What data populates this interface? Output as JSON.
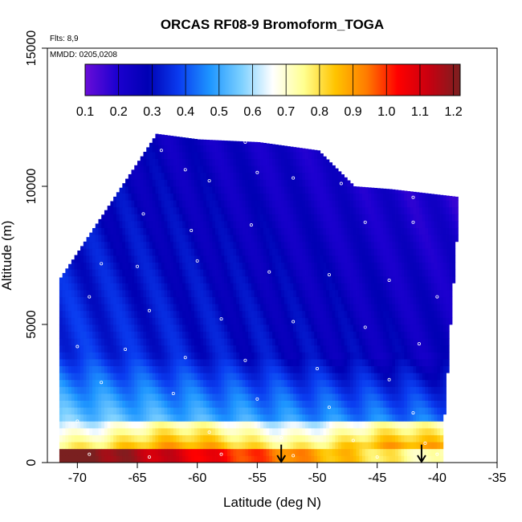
{
  "chart_data": {
    "type": "heatmap",
    "title": "ORCAS RF08-9 Bromoform_TOGA",
    "xlabel": "Latitude (deg N)",
    "ylabel": "Altitude (m)",
    "xlim": [
      -72.5,
      -35
    ],
    "ylim": [
      0,
      15000
    ],
    "x_ticks": [
      -70,
      -65,
      -60,
      -55,
      -50,
      -45,
      -40,
      -35
    ],
    "y_ticks": [
      0,
      5000,
      10000,
      15000
    ],
    "flights_note": "Flts: 8,9",
    "date_note": "MMDD: 0205,0208",
    "colorbar": {
      "ticks": [
        0.1,
        0.2,
        0.3,
        0.4,
        0.5,
        0.6,
        0.7,
        0.8,
        0.9,
        1.0,
        1.1,
        1.2
      ],
      "tick_labels": [
        "0.1",
        "0.2",
        "0.3",
        "0.4",
        "0.5",
        "0.6",
        "0.7",
        "0.8",
        "0.9",
        "1.0",
        "1.1",
        "1.2"
      ],
      "range": [
        0.1,
        1.22
      ],
      "colors": [
        "#6a0dd8",
        "#1d00d0",
        "#0000b4",
        "#0a3cf0",
        "#1e96ff",
        "#7cd0ff",
        "#ffffff",
        "#ffff90",
        "#ffc400",
        "#ff7c00",
        "#ff0000",
        "#c80010",
        "#7a2020"
      ]
    },
    "domain_top": [
      [
        -63.5,
        11900
      ],
      [
        -60,
        11700
      ],
      [
        -55,
        11600
      ],
      [
        -50,
        11300
      ],
      [
        -47,
        10000
      ],
      [
        -44,
        9900
      ],
      [
        -38,
        9600
      ]
    ],
    "x_left": -71.5,
    "x_right_bottom": -39.5,
    "arrows_lat": [
      -53,
      -41.3
    ],
    "samples": [
      {
        "lat": -63,
        "alt": 11300
      },
      {
        "lat": -61,
        "alt": 10600
      },
      {
        "lat": -59,
        "alt": 10200
      },
      {
        "lat": -56,
        "alt": 11600
      },
      {
        "lat": -55,
        "alt": 10500
      },
      {
        "lat": -52,
        "alt": 10300
      },
      {
        "lat": -48,
        "alt": 10100
      },
      {
        "lat": -42,
        "alt": 9600
      },
      {
        "lat": -64.5,
        "alt": 9000
      },
      {
        "lat": -60.5,
        "alt": 8400
      },
      {
        "lat": -55.5,
        "alt": 8600
      },
      {
        "lat": -46,
        "alt": 8700
      },
      {
        "lat": -42,
        "alt": 8700
      },
      {
        "lat": -68,
        "alt": 7200
      },
      {
        "lat": -65,
        "alt": 7100
      },
      {
        "lat": -60,
        "alt": 7300
      },
      {
        "lat": -54,
        "alt": 6900
      },
      {
        "lat": -49,
        "alt": 6800
      },
      {
        "lat": -44,
        "alt": 6600
      },
      {
        "lat": -40,
        "alt": 6000
      },
      {
        "lat": -69,
        "alt": 6000
      },
      {
        "lat": -64,
        "alt": 5500
      },
      {
        "lat": -58,
        "alt": 5200
      },
      {
        "lat": -52,
        "alt": 5100
      },
      {
        "lat": -46,
        "alt": 4900
      },
      {
        "lat": -41.5,
        "alt": 4300
      },
      {
        "lat": -70,
        "alt": 4200
      },
      {
        "lat": -66,
        "alt": 4100
      },
      {
        "lat": -61,
        "alt": 3800
      },
      {
        "lat": -56,
        "alt": 3700
      },
      {
        "lat": -50,
        "alt": 3400
      },
      {
        "lat": -44,
        "alt": 3000
      },
      {
        "lat": -68,
        "alt": 2900
      },
      {
        "lat": -62,
        "alt": 2500
      },
      {
        "lat": -55,
        "alt": 2300
      },
      {
        "lat": -49,
        "alt": 2000
      },
      {
        "lat": -42,
        "alt": 1800
      },
      {
        "lat": -70,
        "alt": 1500
      },
      {
        "lat": -65,
        "alt": 1300
      },
      {
        "lat": -59,
        "alt": 1100
      },
      {
        "lat": -53,
        "alt": 900
      },
      {
        "lat": -47,
        "alt": 800
      },
      {
        "lat": -41,
        "alt": 700
      },
      {
        "lat": -69,
        "alt": 300
      },
      {
        "lat": -64,
        "alt": 200
      },
      {
        "lat": -58,
        "alt": 300
      },
      {
        "lat": -52,
        "alt": 250
      },
      {
        "lat": -45,
        "alt": 200
      },
      {
        "lat": -40,
        "alt": 300
      }
    ]
  }
}
